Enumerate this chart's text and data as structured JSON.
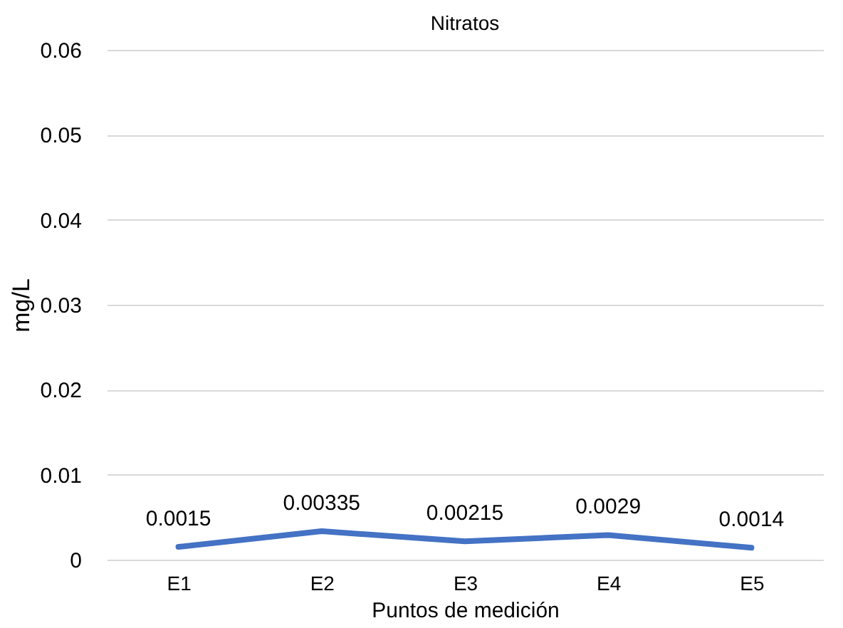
{
  "chart_data": {
    "type": "line",
    "title": "Nitratos",
    "xlabel": "Puntos de medición",
    "ylabel": "mg/L",
    "categories": [
      "E1",
      "E2",
      "E3",
      "E4",
      "E5"
    ],
    "series": [
      {
        "color": "#4472c4",
        "values": [
          0.0015,
          0.00335,
          0.00215,
          0.0029,
          0.0014
        ]
      }
    ],
    "ylim": [
      0,
      0.06
    ],
    "yticks": [
      0,
      0.01,
      0.02,
      0.03,
      0.04,
      0.05,
      0.06
    ],
    "grid": "y",
    "data_labels": true,
    "marker": "none",
    "line_style": "solid",
    "legend": false
  }
}
